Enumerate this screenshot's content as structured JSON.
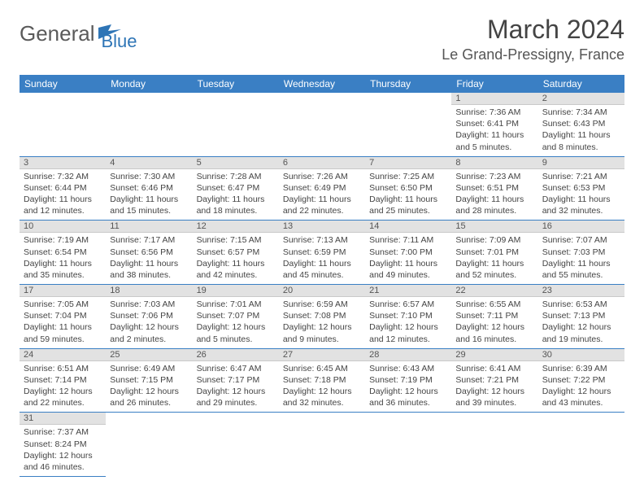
{
  "logo": {
    "part1": "General",
    "part2": "Blue"
  },
  "title": "March 2024",
  "location": "Le Grand-Pressigny, France",
  "colors": {
    "header_bg": "#3a7fc4",
    "header_text": "#ffffff",
    "daynum_bg": "#e2e2e2",
    "cell_border": "#3a7fc4",
    "logo_general": "#5a5a5a",
    "logo_blue": "#2e75b6"
  },
  "dayHeaders": [
    "Sunday",
    "Monday",
    "Tuesday",
    "Wednesday",
    "Thursday",
    "Friday",
    "Saturday"
  ],
  "weeks": [
    [
      null,
      null,
      null,
      null,
      null,
      {
        "n": "1",
        "sr": "7:36 AM",
        "ss": "6:41 PM",
        "dl": "11 hours and 5 minutes."
      },
      {
        "n": "2",
        "sr": "7:34 AM",
        "ss": "6:43 PM",
        "dl": "11 hours and 8 minutes."
      }
    ],
    [
      {
        "n": "3",
        "sr": "7:32 AM",
        "ss": "6:44 PM",
        "dl": "11 hours and 12 minutes."
      },
      {
        "n": "4",
        "sr": "7:30 AM",
        "ss": "6:46 PM",
        "dl": "11 hours and 15 minutes."
      },
      {
        "n": "5",
        "sr": "7:28 AM",
        "ss": "6:47 PM",
        "dl": "11 hours and 18 minutes."
      },
      {
        "n": "6",
        "sr": "7:26 AM",
        "ss": "6:49 PM",
        "dl": "11 hours and 22 minutes."
      },
      {
        "n": "7",
        "sr": "7:25 AM",
        "ss": "6:50 PM",
        "dl": "11 hours and 25 minutes."
      },
      {
        "n": "8",
        "sr": "7:23 AM",
        "ss": "6:51 PM",
        "dl": "11 hours and 28 minutes."
      },
      {
        "n": "9",
        "sr": "7:21 AM",
        "ss": "6:53 PM",
        "dl": "11 hours and 32 minutes."
      }
    ],
    [
      {
        "n": "10",
        "sr": "7:19 AM",
        "ss": "6:54 PM",
        "dl": "11 hours and 35 minutes."
      },
      {
        "n": "11",
        "sr": "7:17 AM",
        "ss": "6:56 PM",
        "dl": "11 hours and 38 minutes."
      },
      {
        "n": "12",
        "sr": "7:15 AM",
        "ss": "6:57 PM",
        "dl": "11 hours and 42 minutes."
      },
      {
        "n": "13",
        "sr": "7:13 AM",
        "ss": "6:59 PM",
        "dl": "11 hours and 45 minutes."
      },
      {
        "n": "14",
        "sr": "7:11 AM",
        "ss": "7:00 PM",
        "dl": "11 hours and 49 minutes."
      },
      {
        "n": "15",
        "sr": "7:09 AM",
        "ss": "7:01 PM",
        "dl": "11 hours and 52 minutes."
      },
      {
        "n": "16",
        "sr": "7:07 AM",
        "ss": "7:03 PM",
        "dl": "11 hours and 55 minutes."
      }
    ],
    [
      {
        "n": "17",
        "sr": "7:05 AM",
        "ss": "7:04 PM",
        "dl": "11 hours and 59 minutes."
      },
      {
        "n": "18",
        "sr": "7:03 AM",
        "ss": "7:06 PM",
        "dl": "12 hours and 2 minutes."
      },
      {
        "n": "19",
        "sr": "7:01 AM",
        "ss": "7:07 PM",
        "dl": "12 hours and 5 minutes."
      },
      {
        "n": "20",
        "sr": "6:59 AM",
        "ss": "7:08 PM",
        "dl": "12 hours and 9 minutes."
      },
      {
        "n": "21",
        "sr": "6:57 AM",
        "ss": "7:10 PM",
        "dl": "12 hours and 12 minutes."
      },
      {
        "n": "22",
        "sr": "6:55 AM",
        "ss": "7:11 PM",
        "dl": "12 hours and 16 minutes."
      },
      {
        "n": "23",
        "sr": "6:53 AM",
        "ss": "7:13 PM",
        "dl": "12 hours and 19 minutes."
      }
    ],
    [
      {
        "n": "24",
        "sr": "6:51 AM",
        "ss": "7:14 PM",
        "dl": "12 hours and 22 minutes."
      },
      {
        "n": "25",
        "sr": "6:49 AM",
        "ss": "7:15 PM",
        "dl": "12 hours and 26 minutes."
      },
      {
        "n": "26",
        "sr": "6:47 AM",
        "ss": "7:17 PM",
        "dl": "12 hours and 29 minutes."
      },
      {
        "n": "27",
        "sr": "6:45 AM",
        "ss": "7:18 PM",
        "dl": "12 hours and 32 minutes."
      },
      {
        "n": "28",
        "sr": "6:43 AM",
        "ss": "7:19 PM",
        "dl": "12 hours and 36 minutes."
      },
      {
        "n": "29",
        "sr": "6:41 AM",
        "ss": "7:21 PM",
        "dl": "12 hours and 39 minutes."
      },
      {
        "n": "30",
        "sr": "6:39 AM",
        "ss": "7:22 PM",
        "dl": "12 hours and 43 minutes."
      }
    ],
    [
      {
        "n": "31",
        "sr": "7:37 AM",
        "ss": "8:24 PM",
        "dl": "12 hours and 46 minutes."
      },
      null,
      null,
      null,
      null,
      null,
      null
    ]
  ],
  "labels": {
    "sunrise": "Sunrise: ",
    "sunset": "Sunset: ",
    "daylight": "Daylight: "
  }
}
